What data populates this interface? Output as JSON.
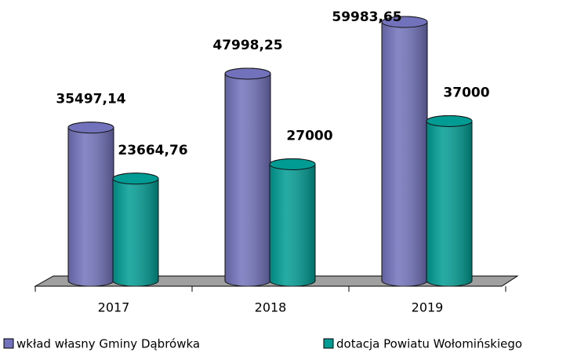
{
  "chart_data": {
    "type": "bar3d",
    "categories": [
      "2017",
      "2018",
      "2019"
    ],
    "series": [
      {
        "name": "wkład własny Gminy Dąbrówka",
        "color": "#7272bc",
        "values": [
          35497.14,
          47998.25,
          59983.65
        ],
        "value_labels": [
          "35497,14",
          "47998,25",
          "59983,65"
        ]
      },
      {
        "name": "dotacja Powiatu Wołomińskiego",
        "color": "#009c94",
        "values": [
          23664.76,
          27000,
          37000
        ],
        "value_labels": [
          "23664,76",
          "27000",
          "37000"
        ]
      }
    ]
  }
}
